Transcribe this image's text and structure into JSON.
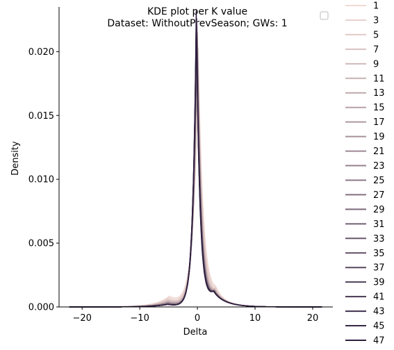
{
  "chart_data": {
    "type": "line",
    "title": "KDE plot per K value",
    "subtitle": "Dataset: WithoutPrevSeason; GWs: 1",
    "xlabel": "Delta",
    "ylabel": "Density",
    "xlim": [
      -24,
      23.5
    ],
    "ylim": [
      0,
      0.0235
    ],
    "xticks": [
      -20,
      -10,
      0,
      10,
      20
    ],
    "xtick_labels": [
      "−20",
      "−10",
      "0",
      "10",
      "20"
    ],
    "yticks": [
      0.0,
      0.005,
      0.01,
      0.015,
      0.02
    ],
    "ytick_labels": [
      "0.000",
      "0.005",
      "0.010",
      "0.015",
      "0.020"
    ],
    "grid": false,
    "legend_placement": "outside-right",
    "empty_legend_box": "top-right",
    "palette": {
      "light": "#f2d9d3",
      "dark": "#2d1e3e"
    },
    "series": [
      {
        "name": "1",
        "peak": 0.0193,
        "width": 0.85,
        "shift": 0.15,
        "left_tail": 0.0008
      },
      {
        "name": "3",
        "peak": 0.02,
        "width": 0.8,
        "shift": 0.1,
        "left_tail": 0.0007
      },
      {
        "name": "5",
        "peak": 0.0205,
        "width": 0.75,
        "shift": 0.05,
        "left_tail": 0.0006
      },
      {
        "name": "7",
        "peak": 0.0209,
        "width": 0.72,
        "shift": 0.02,
        "left_tail": 0.0005
      },
      {
        "name": "9",
        "peak": 0.0212,
        "width": 0.7,
        "shift": 0.0,
        "left_tail": 0.0005
      },
      {
        "name": "11",
        "peak": 0.0214,
        "width": 0.68,
        "shift": -0.02,
        "left_tail": 0.0004
      },
      {
        "name": "13",
        "peak": 0.0216,
        "width": 0.67,
        "shift": -0.03,
        "left_tail": 0.0004
      },
      {
        "name": "15",
        "peak": 0.0217,
        "width": 0.66,
        "shift": -0.04,
        "left_tail": 0.0004
      },
      {
        "name": "17",
        "peak": 0.0218,
        "width": 0.65,
        "shift": -0.05,
        "left_tail": 0.0003
      },
      {
        "name": "19",
        "peak": 0.0219,
        "width": 0.64,
        "shift": -0.06,
        "left_tail": 0.0003
      },
      {
        "name": "21",
        "peak": 0.022,
        "width": 0.64,
        "shift": -0.07,
        "left_tail": 0.0003
      },
      {
        "name": "23",
        "peak": 0.0221,
        "width": 0.63,
        "shift": -0.08,
        "left_tail": 0.0003
      },
      {
        "name": "25",
        "peak": 0.0222,
        "width": 0.63,
        "shift": -0.09,
        "left_tail": 0.0003
      },
      {
        "name": "27",
        "peak": 0.0223,
        "width": 0.62,
        "shift": -0.1,
        "left_tail": 0.0003
      },
      {
        "name": "29",
        "peak": 0.0224,
        "width": 0.62,
        "shift": -0.11,
        "left_tail": 0.0002
      },
      {
        "name": "31",
        "peak": 0.0224,
        "width": 0.62,
        "shift": -0.12,
        "left_tail": 0.0002
      },
      {
        "name": "33",
        "peak": 0.0225,
        "width": 0.61,
        "shift": -0.13,
        "left_tail": 0.0002
      },
      {
        "name": "35",
        "peak": 0.0226,
        "width": 0.61,
        "shift": -0.14,
        "left_tail": 0.0002
      },
      {
        "name": "37",
        "peak": 0.0226,
        "width": 0.61,
        "shift": -0.15,
        "left_tail": 0.0002
      },
      {
        "name": "39",
        "peak": 0.0227,
        "width": 0.6,
        "shift": -0.16,
        "left_tail": 0.0002
      },
      {
        "name": "41",
        "peak": 0.0227,
        "width": 0.6,
        "shift": -0.17,
        "left_tail": 0.0002
      },
      {
        "name": "43",
        "peak": 0.0228,
        "width": 0.6,
        "shift": -0.18,
        "left_tail": 0.0002
      },
      {
        "name": "45",
        "peak": 0.0228,
        "width": 0.6,
        "shift": -0.19,
        "left_tail": 0.0002
      },
      {
        "name": "47",
        "peak": 0.0229,
        "width": 0.59,
        "shift": -0.2,
        "left_tail": 0.0002
      }
    ]
  }
}
